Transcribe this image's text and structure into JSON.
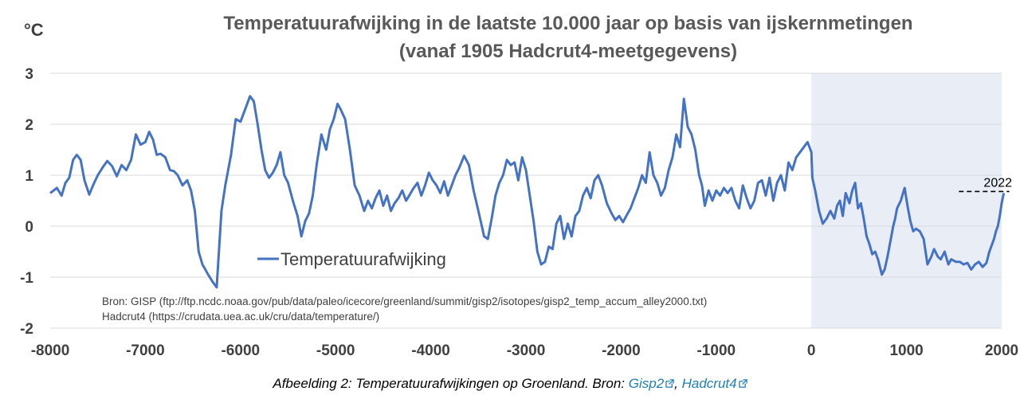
{
  "chart_data": {
    "type": "line",
    "title": "Temperatuurafwijking in de laatste 10.000 jaar op basis van ijskernmetingen",
    "subtitle": "(vanaf 1905 Hadcrut4-meetgegevens)",
    "ylabel": "°C",
    "xlim": [
      -8000,
      2000
    ],
    "ylim": [
      -2,
      3
    ],
    "xticks": [
      "-8000",
      "-7000",
      "-6000",
      "-5000",
      "-4000",
      "-3000",
      "-2000",
      "-1000",
      "0",
      "1000",
      "2000"
    ],
    "yticks": [
      "3",
      "2",
      "1",
      "0",
      "-1",
      "-2"
    ],
    "grid": "horizontal",
    "legend_position": "lower-left",
    "shaded_region": [
      0,
      2000
    ],
    "reference_line": {
      "label": "2022",
      "y": 0.68,
      "x_range": [
        1550,
        2080
      ]
    },
    "series": [
      {
        "name": "Temperatuurafwijking",
        "color": "#4472c4",
        "points": [
          [
            -8000,
            0.65
          ],
          [
            -7930,
            0.75
          ],
          [
            -7880,
            0.6
          ],
          [
            -7840,
            0.85
          ],
          [
            -7800,
            0.95
          ],
          [
            -7760,
            1.3
          ],
          [
            -7720,
            1.4
          ],
          [
            -7680,
            1.3
          ],
          [
            -7640,
            0.9
          ],
          [
            -7590,
            0.62
          ],
          [
            -7550,
            0.8
          ],
          [
            -7500,
            1.0
          ],
          [
            -7450,
            1.15
          ],
          [
            -7400,
            1.28
          ],
          [
            -7350,
            1.18
          ],
          [
            -7300,
            0.98
          ],
          [
            -7250,
            1.2
          ],
          [
            -7200,
            1.1
          ],
          [
            -7150,
            1.3
          ],
          [
            -7100,
            1.8
          ],
          [
            -7050,
            1.6
          ],
          [
            -7000,
            1.65
          ],
          [
            -6960,
            1.85
          ],
          [
            -6920,
            1.7
          ],
          [
            -6880,
            1.4
          ],
          [
            -6840,
            1.42
          ],
          [
            -6790,
            1.35
          ],
          [
            -6740,
            1.1
          ],
          [
            -6700,
            1.08
          ],
          [
            -6660,
            1.0
          ],
          [
            -6610,
            0.8
          ],
          [
            -6560,
            0.9
          ],
          [
            -6520,
            0.7
          ],
          [
            -6480,
            0.3
          ],
          [
            -6440,
            -0.5
          ],
          [
            -6400,
            -0.75
          ],
          [
            -6340,
            -0.95
          ],
          [
            -6290,
            -1.1
          ],
          [
            -6250,
            -1.2
          ],
          [
            -6200,
            0.3
          ],
          [
            -6160,
            0.8
          ],
          [
            -6100,
            1.4
          ],
          [
            -6050,
            2.1
          ],
          [
            -6000,
            2.05
          ],
          [
            -5950,
            2.3
          ],
          [
            -5900,
            2.55
          ],
          [
            -5860,
            2.45
          ],
          [
            -5820,
            2.0
          ],
          [
            -5780,
            1.5
          ],
          [
            -5740,
            1.1
          ],
          [
            -5700,
            0.95
          ],
          [
            -5660,
            1.05
          ],
          [
            -5620,
            1.2
          ],
          [
            -5580,
            1.45
          ],
          [
            -5540,
            1.0
          ],
          [
            -5500,
            0.85
          ],
          [
            -5450,
            0.5
          ],
          [
            -5400,
            0.2
          ],
          [
            -5360,
            -0.2
          ],
          [
            -5320,
            0.1
          ],
          [
            -5280,
            0.25
          ],
          [
            -5240,
            0.6
          ],
          [
            -5200,
            1.2
          ],
          [
            -5150,
            1.8
          ],
          [
            -5100,
            1.5
          ],
          [
            -5060,
            1.9
          ],
          [
            -5020,
            2.1
          ],
          [
            -4980,
            2.4
          ],
          [
            -4950,
            2.3
          ],
          [
            -4900,
            2.1
          ],
          [
            -4850,
            1.5
          ],
          [
            -4800,
            0.8
          ],
          [
            -4750,
            0.6
          ],
          [
            -4700,
            0.3
          ],
          [
            -4660,
            0.5
          ],
          [
            -4620,
            0.35
          ],
          [
            -4580,
            0.55
          ],
          [
            -4540,
            0.7
          ],
          [
            -4500,
            0.4
          ],
          [
            -4460,
            0.6
          ],
          [
            -4420,
            0.3
          ],
          [
            -4380,
            0.45
          ],
          [
            -4340,
            0.55
          ],
          [
            -4300,
            0.7
          ],
          [
            -4260,
            0.5
          ],
          [
            -4220,
            0.62
          ],
          [
            -4180,
            0.75
          ],
          [
            -4140,
            0.85
          ],
          [
            -4100,
            0.6
          ],
          [
            -4060,
            0.8
          ],
          [
            -4020,
            1.05
          ],
          [
            -3980,
            0.9
          ],
          [
            -3940,
            0.8
          ],
          [
            -3900,
            0.65
          ],
          [
            -3860,
            0.88
          ],
          [
            -3820,
            0.6
          ],
          [
            -3780,
            0.8
          ],
          [
            -3740,
            1.0
          ],
          [
            -3700,
            1.15
          ],
          [
            -3650,
            1.38
          ],
          [
            -3600,
            1.2
          ],
          [
            -3550,
            0.7
          ],
          [
            -3500,
            0.3
          ],
          [
            -3440,
            -0.2
          ],
          [
            -3400,
            -0.25
          ],
          [
            -3360,
            0.15
          ],
          [
            -3320,
            0.6
          ],
          [
            -3280,
            0.85
          ],
          [
            -3240,
            1.0
          ],
          [
            -3200,
            1.3
          ],
          [
            -3160,
            1.2
          ],
          [
            -3120,
            1.25
          ],
          [
            -3080,
            0.9
          ],
          [
            -3040,
            1.35
          ],
          [
            -3000,
            1.1
          ],
          [
            -2960,
            0.6
          ],
          [
            -2920,
            0.1
          ],
          [
            -2880,
            -0.5
          ],
          [
            -2840,
            -0.75
          ],
          [
            -2800,
            -0.7
          ],
          [
            -2760,
            -0.4
          ],
          [
            -2720,
            -0.45
          ],
          [
            -2680,
            0.05
          ],
          [
            -2640,
            0.2
          ],
          [
            -2600,
            -0.25
          ],
          [
            -2560,
            0.05
          ],
          [
            -2520,
            -0.2
          ],
          [
            -2480,
            0.2
          ],
          [
            -2440,
            0.3
          ],
          [
            -2400,
            0.6
          ],
          [
            -2360,
            0.75
          ],
          [
            -2320,
            0.55
          ],
          [
            -2280,
            0.9
          ],
          [
            -2240,
            1.0
          ],
          [
            -2200,
            0.8
          ],
          [
            -2150,
            0.45
          ],
          [
            -2100,
            0.25
          ],
          [
            -2060,
            0.12
          ],
          [
            -2020,
            0.2
          ],
          [
            -1980,
            0.08
          ],
          [
            -1940,
            0.22
          ],
          [
            -1900,
            0.35
          ],
          [
            -1860,
            0.55
          ],
          [
            -1820,
            0.75
          ],
          [
            -1780,
            1.0
          ],
          [
            -1740,
            0.85
          ],
          [
            -1700,
            1.45
          ],
          [
            -1660,
            1.0
          ],
          [
            -1620,
            0.85
          ],
          [
            -1580,
            0.6
          ],
          [
            -1540,
            0.75
          ],
          [
            -1500,
            1.1
          ],
          [
            -1460,
            1.35
          ],
          [
            -1420,
            1.8
          ],
          [
            -1380,
            1.55
          ],
          [
            -1340,
            2.5
          ],
          [
            -1300,
            1.95
          ],
          [
            -1260,
            1.8
          ],
          [
            -1220,
            1.5
          ],
          [
            -1180,
            1.0
          ],
          [
            -1150,
            0.8
          ],
          [
            -1120,
            0.4
          ],
          [
            -1080,
            0.7
          ],
          [
            -1040,
            0.5
          ],
          [
            -1000,
            0.7
          ],
          [
            -960,
            0.6
          ],
          [
            -920,
            0.75
          ],
          [
            -880,
            0.65
          ],
          [
            -840,
            0.75
          ],
          [
            -800,
            0.5
          ],
          [
            -760,
            0.35
          ],
          [
            -720,
            0.8
          ],
          [
            -680,
            0.55
          ],
          [
            -640,
            0.35
          ],
          [
            -600,
            0.5
          ],
          [
            -560,
            0.85
          ],
          [
            -520,
            0.9
          ],
          [
            -480,
            0.6
          ],
          [
            -440,
            0.95
          ],
          [
            -400,
            0.5
          ],
          [
            -360,
            0.85
          ],
          [
            -320,
            1.0
          ],
          [
            -280,
            0.7
          ],
          [
            -240,
            1.25
          ],
          [
            -200,
            1.1
          ],
          [
            -160,
            1.35
          ],
          [
            -120,
            1.45
          ],
          [
            -80,
            1.55
          ],
          [
            -40,
            1.65
          ],
          [
            0,
            1.45
          ],
          [
            10,
            0.95
          ],
          [
            40,
            0.7
          ],
          [
            80,
            0.3
          ],
          [
            120,
            0.05
          ],
          [
            160,
            0.15
          ],
          [
            200,
            0.3
          ],
          [
            240,
            0.15
          ],
          [
            270,
            0.4
          ],
          [
            300,
            0.5
          ],
          [
            330,
            0.2
          ],
          [
            360,
            0.65
          ],
          [
            400,
            0.45
          ],
          [
            430,
            0.7
          ],
          [
            460,
            0.85
          ],
          [
            490,
            0.35
          ],
          [
            520,
            0.45
          ],
          [
            550,
            0.15
          ],
          [
            580,
            -0.2
          ],
          [
            610,
            -0.35
          ],
          [
            640,
            -0.55
          ],
          [
            670,
            -0.5
          ],
          [
            700,
            -0.65
          ],
          [
            740,
            -0.95
          ],
          [
            770,
            -0.85
          ],
          [
            800,
            -0.6
          ],
          [
            830,
            -0.3
          ],
          [
            860,
            0.0
          ],
          [
            880,
            0.15
          ],
          [
            900,
            0.35
          ],
          [
            940,
            0.5
          ],
          [
            980,
            0.75
          ],
          [
            1010,
            0.4
          ],
          [
            1040,
            0.1
          ],
          [
            1070,
            -0.1
          ],
          [
            1100,
            -0.05
          ],
          [
            1140,
            -0.1
          ],
          [
            1180,
            -0.25
          ],
          [
            1220,
            -0.75
          ],
          [
            1260,
            -0.6
          ],
          [
            1290,
            -0.45
          ],
          [
            1330,
            -0.6
          ],
          [
            1360,
            -0.65
          ],
          [
            1400,
            -0.5
          ],
          [
            1440,
            -0.75
          ],
          [
            1470,
            -0.65
          ],
          [
            1520,
            -0.7
          ],
          [
            1560,
            -0.7
          ],
          [
            1600,
            -0.75
          ],
          [
            1640,
            -0.72
          ],
          [
            1680,
            -0.85
          ],
          [
            1720,
            -0.75
          ],
          [
            1760,
            -0.7
          ],
          [
            1800,
            -0.8
          ],
          [
            1840,
            -0.72
          ],
          [
            1870,
            -0.5
          ],
          [
            1900,
            -0.35
          ],
          [
            1920,
            -0.25
          ],
          [
            1940,
            -0.1
          ],
          [
            1960,
            0.0
          ],
          [
            1980,
            0.2
          ],
          [
            2000,
            0.45
          ],
          [
            2022,
            0.65
          ]
        ]
      }
    ],
    "source_lines": [
      "Bron: GISP (ftp://ftp.ncdc.noaa.gov/pub/data/paleo/icecore/greenland/summit/gisp2/isotopes/gisp2_temp_accum_alley2000.txt)",
      "Hadcrut4 (https://crudata.uea.ac.uk/cru/data/temperature/)"
    ]
  },
  "caption": {
    "text": "Afbeelding 2: Temperatuurafwijkingen op Groenland. Bron: ",
    "link1": "Gisp2",
    "separator": ", ",
    "link2": "Hadcrut4"
  },
  "colors": {
    "line": "#4472c4",
    "shade": "#e9edf6",
    "grid": "#d9d9d9"
  }
}
